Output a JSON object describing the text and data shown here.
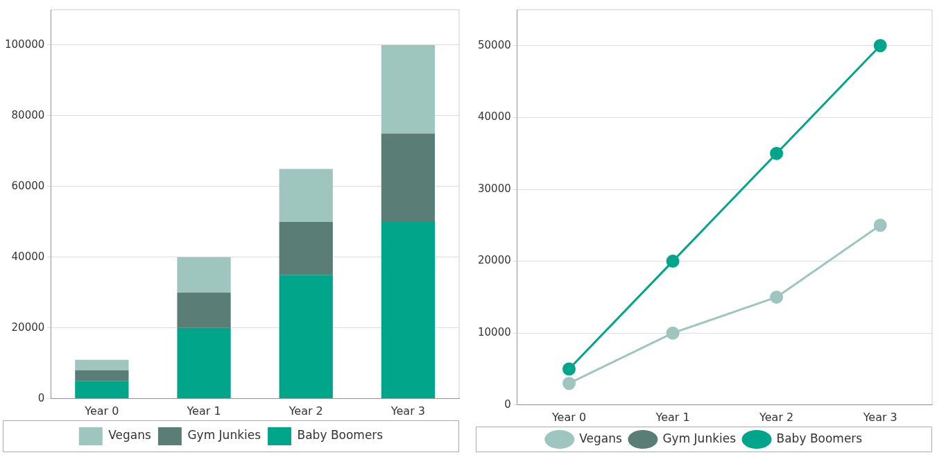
{
  "chart_data": [
    {
      "type": "bar",
      "stacked": true,
      "categories": [
        "Year 0",
        "Year 1",
        "Year 2",
        "Year 3"
      ],
      "series": [
        {
          "name": "Baby Boomers",
          "color": "#00a58a",
          "values": [
            5000,
            20000,
            35000,
            50000
          ]
        },
        {
          "name": "Gym Junkies",
          "color": "#5a7d76",
          "values": [
            3000,
            10000,
            15000,
            25000
          ]
        },
        {
          "name": "Vegans",
          "color": "#9fc5bf",
          "values": [
            3000,
            10000,
            15000,
            25000
          ]
        }
      ],
      "ylim": [
        0,
        110000
      ],
      "yticks": [
        0,
        20000,
        40000,
        60000,
        80000,
        100000
      ],
      "grid": "y",
      "legend": "bottom"
    },
    {
      "type": "line",
      "marker": "circle",
      "categories": [
        "Year 0",
        "Year 1",
        "Year 2",
        "Year 3"
      ],
      "series": [
        {
          "name": "Vegans",
          "color": "#9fc5bf",
          "values": [
            3000,
            10000,
            15000,
            25000
          ]
        },
        {
          "name": "Gym Junkies",
          "color": "#5a7d76",
          "values": [
            null,
            null,
            null,
            null
          ]
        },
        {
          "name": "Baby Boomers",
          "color": "#00a58a",
          "values": [
            5000,
            20000,
            35000,
            50000
          ]
        }
      ],
      "ylim": [
        0,
        55000
      ],
      "yticks": [
        0,
        10000,
        20000,
        30000,
        40000,
        50000
      ],
      "grid": "y",
      "legend": "bottom"
    }
  ]
}
